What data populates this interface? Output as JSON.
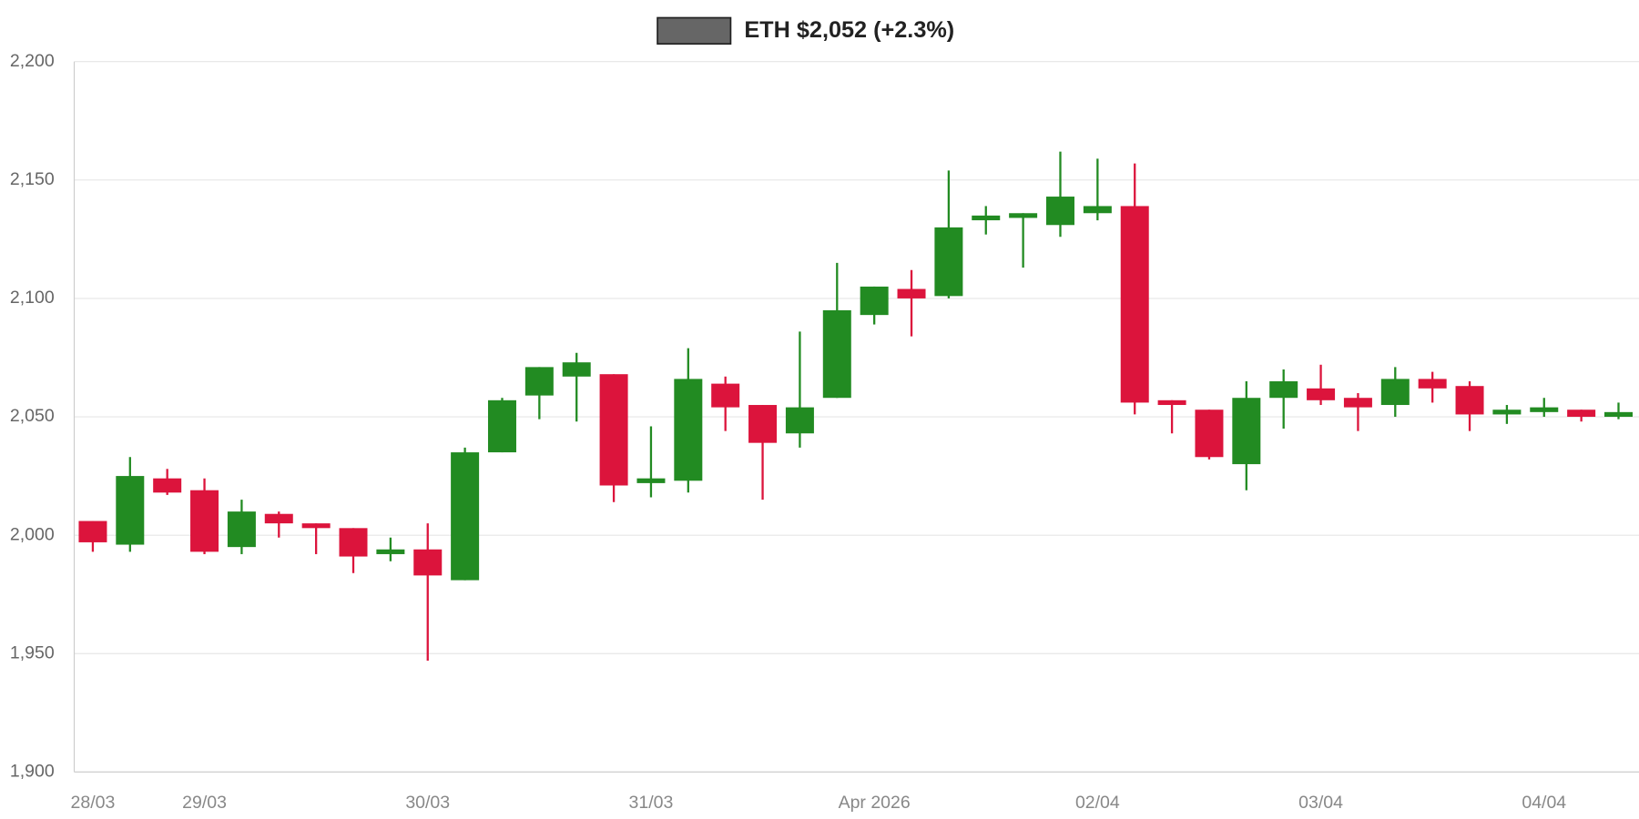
{
  "chart_data": {
    "type": "candlestick",
    "categories": [
      "28/03",
      null,
      null,
      "29/03",
      null,
      null,
      null,
      null,
      null,
      "30/03",
      null,
      null,
      null,
      null,
      null,
      "31/03",
      null,
      null,
      null,
      null,
      null,
      "Apr 2026",
      null,
      null,
      null,
      null,
      null,
      "02/04",
      null,
      null,
      null,
      null,
      null,
      "03/04",
      null,
      null,
      null,
      null,
      null,
      "04/04",
      null,
      null
    ],
    "series": [
      {
        "name": "ETH $2,052 (+2.3%)",
        "color": "#666666",
        "up_color": "#228b22",
        "down_color": "#dc143c",
        "open": [
          2006,
          1996,
          2024,
          2019,
          1995,
          2009,
          2005,
          2003,
          1992,
          1994,
          1981,
          2035,
          2059,
          2067,
          2068,
          2022,
          2023,
          2064,
          2055,
          2043,
          2058,
          2093,
          2104,
          2101,
          2133,
          2134,
          2131,
          2136,
          2139,
          2057,
          2053,
          2030,
          2058,
          2062,
          2058,
          2055,
          2066,
          2063,
          2051,
          2052,
          2053,
          2050
        ],
        "high": [
          2006,
          2033,
          2028,
          2024,
          2015,
          2010,
          2005,
          2003,
          1999,
          2005,
          2037,
          2058,
          2071,
          2077,
          2068,
          2046,
          2079,
          2067,
          2055,
          2086,
          2115,
          2105,
          2112,
          2154,
          2139,
          2136,
          2162,
          2159,
          2157,
          2057,
          2053,
          2065,
          2070,
          2072,
          2060,
          2071,
          2069,
          2065,
          2055,
          2058,
          2053,
          2056
        ],
        "low": [
          1993,
          1993,
          2017,
          1992,
          1992,
          1999,
          1992,
          1984,
          1989,
          1947,
          1981,
          2035,
          2049,
          2048,
          2014,
          2016,
          2018,
          2044,
          2015,
          2037,
          2058,
          2089,
          2084,
          2100,
          2127,
          2113,
          2126,
          2133,
          2051,
          2043,
          2032,
          2019,
          2045,
          2055,
          2044,
          2050,
          2056,
          2044,
          2047,
          2050,
          2048,
          2049
        ],
        "close": [
          1997,
          2025,
          2018,
          1993,
          2010,
          2005,
          2003,
          1991,
          1994,
          1983,
          2035,
          2057,
          2071,
          2073,
          2021,
          2024,
          2066,
          2054,
          2039,
          2054,
          2095,
          2105,
          2100,
          2130,
          2135,
          2136,
          2143,
          2139,
          2056,
          2055,
          2033,
          2058,
          2065,
          2057,
          2054,
          2066,
          2062,
          2051,
          2053,
          2054,
          2050,
          2052
        ]
      }
    ],
    "ylim": [
      1900,
      2200
    ],
    "yticks": [
      {
        "value": 1900,
        "label": "1,900"
      },
      {
        "value": 1950,
        "label": "1,950"
      },
      {
        "value": 2000,
        "label": "2,000"
      },
      {
        "value": 2050,
        "label": "2,050"
      },
      {
        "value": 2100,
        "label": "2,100"
      },
      {
        "value": 2150,
        "label": "2,150"
      },
      {
        "value": 2200,
        "label": "2,200"
      }
    ],
    "grid": true
  }
}
